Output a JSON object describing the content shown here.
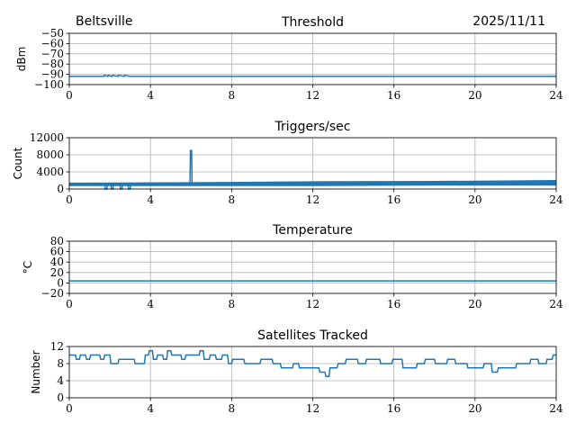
{
  "header": {
    "station": "Beltsville",
    "date": "2025/11/11"
  },
  "series_color": "#1f77b4",
  "chart_data": [
    {
      "id": "threshold",
      "type": "line",
      "title": "Threshold",
      "ylabel": "dBm",
      "xlim": [
        0,
        24
      ],
      "ylim": [
        -100,
        -50
      ],
      "xticks": [
        0,
        4,
        8,
        12,
        16,
        20,
        24
      ],
      "yticks": [
        -100,
        -90,
        -80,
        -70,
        -60,
        -50
      ],
      "grid": true,
      "x": [
        0,
        1.7,
        1.72,
        1.9,
        1.92,
        2.1,
        2.12,
        2.4,
        2.42,
        2.7,
        2.72,
        3.0,
        3.02,
        6.0,
        12,
        18,
        24
      ],
      "y": [
        -92,
        -92,
        -91,
        -92,
        -91,
        -92,
        -91,
        -92,
        -91,
        -92,
        -91,
        -92,
        -92,
        -92,
        -92,
        -92,
        -92
      ]
    },
    {
      "id": "triggers",
      "type": "line",
      "title": "Triggers/sec",
      "ylabel": "Count",
      "xlim": [
        0,
        24
      ],
      "ylim": [
        0,
        12000
      ],
      "xticks": [
        0,
        4,
        8,
        12,
        16,
        20,
        24
      ],
      "yticks": [
        0,
        4000,
        8000,
        12000
      ],
      "grid": true,
      "x": [
        0,
        1.75,
        1.77,
        1.85,
        1.87,
        2.05,
        2.07,
        2.15,
        2.17,
        2.5,
        2.52,
        2.6,
        2.62,
        2.9,
        2.92,
        3.0,
        3.02,
        5.95,
        5.97,
        6.03,
        6.05,
        12,
        18,
        24
      ],
      "y": [
        1000,
        1000,
        0,
        0,
        1000,
        1000,
        0,
        0,
        1000,
        1000,
        0,
        0,
        1000,
        1000,
        0,
        0,
        1000,
        1000,
        9000,
        9000,
        1100,
        1200,
        1300,
        1500
      ],
      "band_low": [
        700,
        700,
        700,
        800,
        800
      ],
      "band_high": [
        1500,
        1600,
        1800,
        1900,
        2100
      ],
      "band_x": [
        0,
        6,
        12,
        18,
        24
      ]
    },
    {
      "id": "temperature",
      "type": "line",
      "title": "Temperature",
      "ylabel": "°C",
      "xlim": [
        0,
        24
      ],
      "ylim": [
        -20,
        80
      ],
      "xticks": [
        0,
        4,
        8,
        12,
        16,
        20,
        24
      ],
      "yticks": [
        -20,
        0,
        20,
        40,
        60,
        80
      ],
      "grid": true,
      "x": [
        0,
        6,
        12,
        18,
        24
      ],
      "y": [
        4,
        4,
        4,
        4,
        4
      ]
    },
    {
      "id": "satellites",
      "type": "line",
      "title": "Satellites Tracked",
      "ylabel": "Number",
      "xlim": [
        0,
        24
      ],
      "ylim": [
        0,
        12
      ],
      "xticks": [
        0,
        4,
        8,
        12,
        16,
        20,
        24
      ],
      "yticks": [
        0,
        4,
        8,
        12
      ],
      "grid": true,
      "x": [
        0,
        0.3,
        0.35,
        0.5,
        0.55,
        0.8,
        0.85,
        1.0,
        1.05,
        1.5,
        1.55,
        1.7,
        1.75,
        2.0,
        2.05,
        2.4,
        2.45,
        2.6,
        2.65,
        3.2,
        3.25,
        3.7,
        3.75,
        3.9,
        3.95,
        4.1,
        4.15,
        4.3,
        4.35,
        4.6,
        4.65,
        4.8,
        4.85,
        5.0,
        5.05,
        5.5,
        5.55,
        5.7,
        5.75,
        6.4,
        6.45,
        6.6,
        6.65,
        6.9,
        6.95,
        7.2,
        7.25,
        7.5,
        7.55,
        7.8,
        7.85,
        8.0,
        8.05,
        8.6,
        8.65,
        9.4,
        9.45,
        10.0,
        10.05,
        10.4,
        10.45,
        11.0,
        11.05,
        11.3,
        11.35,
        12.3,
        12.35,
        12.6,
        12.65,
        12.8,
        12.85,
        13.2,
        13.25,
        13.6,
        13.65,
        14.2,
        14.25,
        14.6,
        14.65,
        15.3,
        15.35,
        15.9,
        15.95,
        16.4,
        16.45,
        17.1,
        17.15,
        17.5,
        17.55,
        18.0,
        18.05,
        18.6,
        18.65,
        19.0,
        19.05,
        19.6,
        19.65,
        20.4,
        20.45,
        20.8,
        20.85,
        21.1,
        21.15,
        22.0,
        22.05,
        22.7,
        22.75,
        23.1,
        23.15,
        23.5,
        23.55,
        23.8,
        23.85,
        24.0
      ],
      "y": [
        10,
        10,
        9,
        9,
        10,
        10,
        9,
        9,
        10,
        10,
        9,
        9,
        10,
        10,
        8,
        8,
        9,
        9,
        9,
        9,
        8,
        8,
        10,
        10,
        11,
        11,
        9,
        9,
        10,
        10,
        9,
        9,
        11,
        11,
        10,
        10,
        9,
        9,
        10,
        10,
        11,
        11,
        9,
        9,
        10,
        10,
        9,
        9,
        10,
        10,
        8,
        8,
        9,
        9,
        8,
        8,
        9,
        9,
        8,
        8,
        7,
        7,
        8,
        8,
        7,
        7,
        6,
        6,
        5,
        5,
        7,
        7,
        8,
        8,
        9,
        9,
        8,
        8,
        9,
        9,
        8,
        8,
        9,
        9,
        7,
        7,
        8,
        8,
        9,
        9,
        8,
        8,
        9,
        9,
        8,
        8,
        7,
        7,
        8,
        8,
        6,
        6,
        7,
        7,
        8,
        8,
        9,
        9,
        8,
        8,
        9,
        9,
        10,
        10
      ]
    }
  ]
}
